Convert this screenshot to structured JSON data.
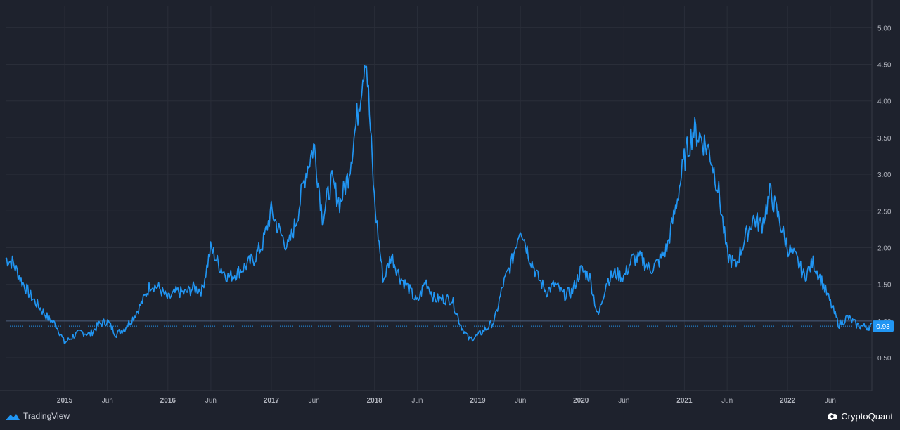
{
  "colors": {
    "background": "#1e222d",
    "grid": "#2a2e39",
    "line": "#2196f3",
    "axis_text": "#b2b5be",
    "last_value_badge": "#2196f3"
  },
  "watermarks": {
    "left_text": "TradingView",
    "left_icon": "tradingview-logo-icon",
    "right_text": "CryptoQuant",
    "right_icon": "cryptoquant-logo-icon"
  },
  "chart_data": {
    "type": "line",
    "x_ticks": [
      "2015",
      "Jun",
      "2016",
      "Jun",
      "2017",
      "Jun",
      "2018",
      "Jun",
      "2019",
      "Jun",
      "2020",
      "Jun",
      "2021",
      "Jun",
      "2022",
      "Jun"
    ],
    "y_ticks": [
      "5.00",
      "4.50",
      "4.00",
      "3.50",
      "3.00",
      "2.50",
      "2.00",
      "1.50",
      "1.00",
      "0.50"
    ],
    "ylim": [
      0.05,
      5.3
    ],
    "xlim": [
      "2014-06-06",
      "2022-10-26"
    ],
    "grid": true,
    "scale": "linear",
    "axis_position": "right",
    "last_value": 0.93,
    "last_value_label": "0.93",
    "reference_level": 1.0,
    "series": [
      {
        "x": [
          "2014-06-06",
          "2014-07-01",
          "2014-08-01",
          "2014-09-01",
          "2014-10-01",
          "2014-11-01",
          "2014-12-01",
          "2015-01-01",
          "2015-02-01",
          "2015-03-01",
          "2015-04-01",
          "2015-05-01",
          "2015-06-01",
          "2015-07-01",
          "2015-08-01",
          "2015-09-01",
          "2015-10-01",
          "2015-11-01",
          "2015-12-01",
          "2016-01-01",
          "2016-02-01",
          "2016-03-01",
          "2016-04-01",
          "2016-05-01",
          "2016-06-01",
          "2016-07-01",
          "2016-08-01",
          "2016-09-01",
          "2016-10-01",
          "2016-11-01",
          "2016-12-01",
          "2017-01-01",
          "2017-02-01",
          "2017-03-01",
          "2017-04-01",
          "2017-05-01",
          "2017-06-01",
          "2017-07-01",
          "2017-08-01",
          "2017-09-01",
          "2017-10-01",
          "2017-11-01",
          "2017-12-01",
          "2018-01-01",
          "2018-02-01",
          "2018-03-01",
          "2018-04-01",
          "2018-05-01",
          "2018-06-01",
          "2018-07-01",
          "2018-08-01",
          "2018-09-01",
          "2018-10-01",
          "2018-11-01",
          "2018-12-01",
          "2019-01-01",
          "2019-02-01",
          "2019-03-01",
          "2019-04-01",
          "2019-05-01",
          "2019-06-01",
          "2019-07-01",
          "2019-08-01",
          "2019-09-01",
          "2019-10-01",
          "2019-11-01",
          "2019-12-01",
          "2020-01-01",
          "2020-02-01",
          "2020-03-01",
          "2020-04-01",
          "2020-05-01",
          "2020-06-01",
          "2020-07-01",
          "2020-08-01",
          "2020-09-01",
          "2020-10-01",
          "2020-11-01",
          "2020-12-01",
          "2021-01-01",
          "2021-02-01",
          "2021-03-01",
          "2021-04-01",
          "2021-05-01",
          "2021-06-01",
          "2021-07-01",
          "2021-08-01",
          "2021-09-01",
          "2021-10-01",
          "2021-11-01",
          "2021-12-01",
          "2022-01-01",
          "2022-02-01",
          "2022-03-01",
          "2022-04-01",
          "2022-05-01",
          "2022-06-01",
          "2022-07-01",
          "2022-08-01",
          "2022-09-01",
          "2022-10-01",
          "2022-10-26"
        ],
        "values": [
          1.85,
          1.8,
          1.55,
          1.35,
          1.2,
          1.05,
          0.95,
          0.7,
          0.8,
          0.85,
          0.82,
          0.95,
          1.0,
          0.82,
          0.9,
          1.05,
          1.25,
          1.5,
          1.45,
          1.3,
          1.4,
          1.38,
          1.45,
          1.42,
          2.0,
          1.75,
          1.6,
          1.65,
          1.75,
          1.85,
          2.05,
          2.5,
          2.2,
          2.0,
          2.4,
          3.0,
          3.4,
          2.4,
          2.9,
          2.6,
          3.0,
          3.8,
          4.7,
          2.6,
          1.55,
          1.9,
          1.6,
          1.45,
          1.25,
          1.55,
          1.3,
          1.3,
          1.3,
          0.95,
          0.75,
          0.8,
          0.9,
          1.0,
          1.5,
          1.8,
          2.3,
          1.9,
          1.6,
          1.4,
          1.5,
          1.35,
          1.4,
          1.7,
          1.6,
          1.05,
          1.55,
          1.65,
          1.6,
          1.85,
          1.85,
          1.7,
          1.8,
          2.0,
          2.55,
          3.2,
          3.6,
          3.5,
          3.3,
          2.8,
          1.9,
          1.75,
          2.1,
          2.4,
          2.3,
          2.75,
          2.4,
          2.0,
          1.85,
          1.6,
          1.8,
          1.55,
          1.25,
          0.95,
          1.05,
          0.95,
          0.92,
          0.93
        ]
      }
    ]
  }
}
